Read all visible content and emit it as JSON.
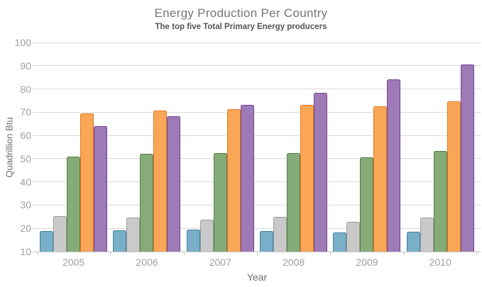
{
  "chart_data": {
    "type": "bar",
    "title": "Energy Production Per Country",
    "subtitle": "The top five Total Primary Energy producers",
    "xlabel": "Year",
    "ylabel": "Quadrillion Btu",
    "ylim": [
      10,
      100
    ],
    "yticks": [
      10,
      20,
      30,
      40,
      50,
      60,
      70,
      80,
      90,
      100
    ],
    "grid": true,
    "legend": "none",
    "categories": [
      "2005",
      "2006",
      "2007",
      "2008",
      "2009",
      "2010"
    ],
    "series": [
      {
        "name": "blue",
        "color": "#79afc8",
        "border_color": "#44819f",
        "values": [
          18.8,
          19.2,
          19.5,
          19.0,
          18.3,
          18.5
        ]
      },
      {
        "name": "gray",
        "color": "#c9c9c9",
        "border_color": "#9d9d9d",
        "values": [
          25.4,
          24.6,
          23.7,
          25.1,
          22.7,
          24.8
        ]
      },
      {
        "name": "green",
        "color": "#85ac78",
        "border_color": "#567e46",
        "values": [
          51.0,
          52.0,
          52.5,
          52.5,
          50.5,
          53.2
        ]
      },
      {
        "name": "orange",
        "color": "#f9a657",
        "border_color": "#e4791c",
        "values": [
          69.4,
          70.8,
          71.4,
          73.2,
          72.6,
          74.8
        ]
      },
      {
        "name": "purple",
        "color": "#9e7ab7",
        "border_color": "#71458f",
        "values": [
          63.9,
          68.2,
          73.3,
          78.3,
          84.0,
          90.5
        ]
      }
    ]
  }
}
